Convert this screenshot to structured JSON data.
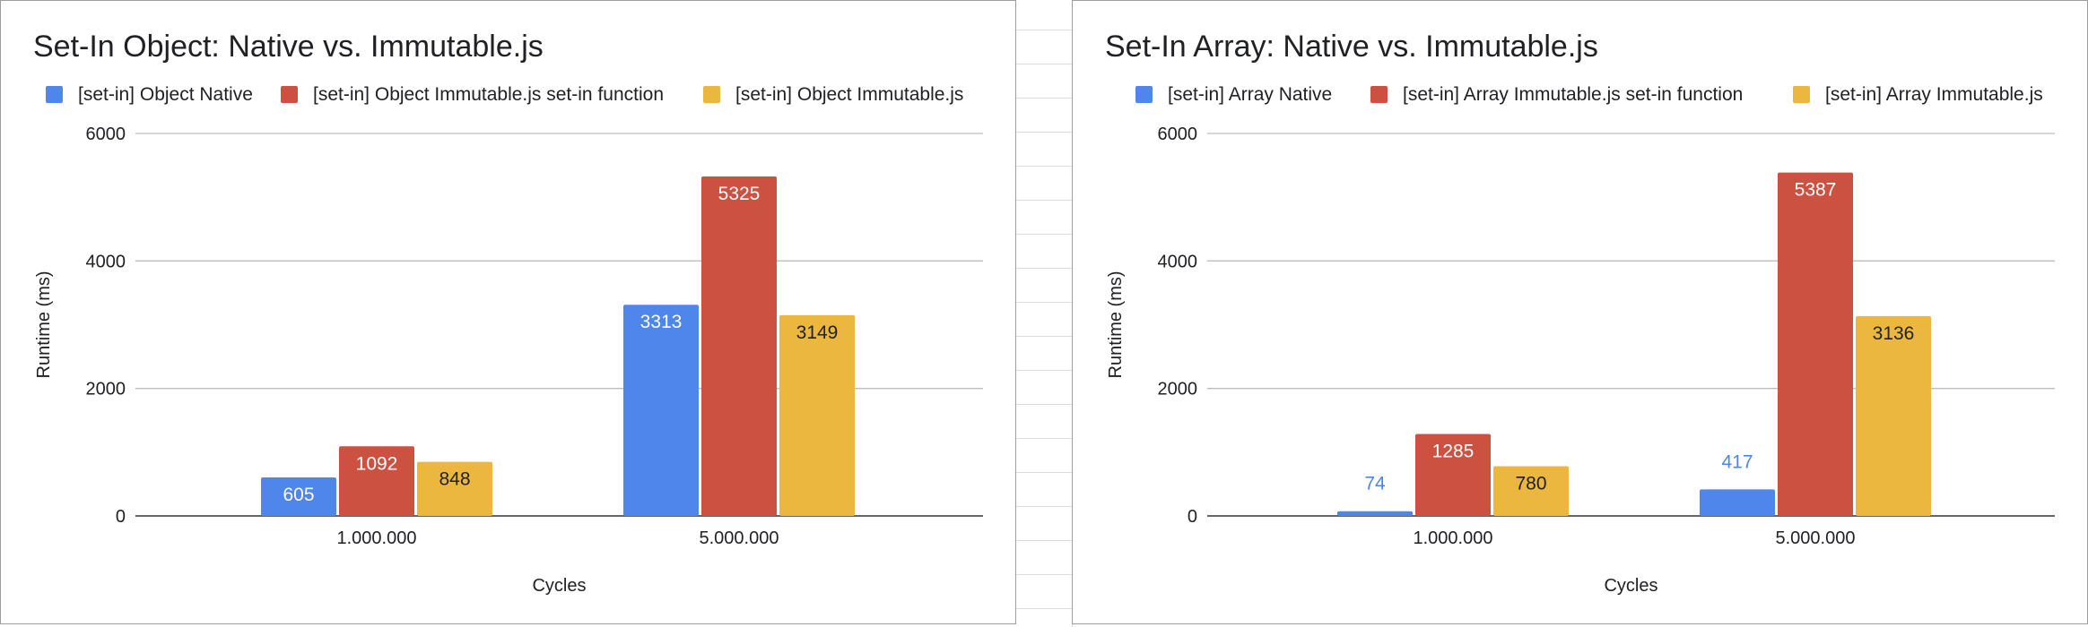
{
  "chart_data": [
    {
      "type": "bar",
      "title": "Set-In Object: Native vs. Immutable.js",
      "xlabel": "Cycles",
      "ylabel": "Runtime (ms)",
      "ylim": [
        0,
        6000
      ],
      "yticks": [
        0,
        2000,
        4000,
        6000
      ],
      "grid": true,
      "legend_position": "top",
      "categories": [
        "1.000.000",
        "5.000.000"
      ],
      "series": [
        {
          "name": "[set-in] Object Native",
          "color": "#4f86ec",
          "values": [
            605,
            3313
          ]
        },
        {
          "name": "[set-in] Object Immutable.js set-in function",
          "color": "#cc5141",
          "values": [
            1092,
            5325
          ]
        },
        {
          "name": "[set-in] Object Immutable.js",
          "color": "#ecb73f",
          "values": [
            848,
            3149
          ]
        }
      ]
    },
    {
      "type": "bar",
      "title": "Set-In Array: Native vs. Immutable.js",
      "xlabel": "Cycles",
      "ylabel": "Runtime (ms)",
      "ylim": [
        0,
        6000
      ],
      "yticks": [
        0,
        2000,
        4000,
        6000
      ],
      "grid": true,
      "legend_position": "top",
      "categories": [
        "1.000.000",
        "5.000.000"
      ],
      "series": [
        {
          "name": "[set-in] Array Native",
          "color": "#4f86ec",
          "values": [
            74,
            417
          ]
        },
        {
          "name": "[set-in] Array Immutable.js set-in function",
          "color": "#cc5141",
          "values": [
            1285,
            5387
          ]
        },
        {
          "name": "[set-in] Array Immutable.js",
          "color": "#ecb73f",
          "values": [
            780,
            3136
          ]
        }
      ]
    }
  ]
}
